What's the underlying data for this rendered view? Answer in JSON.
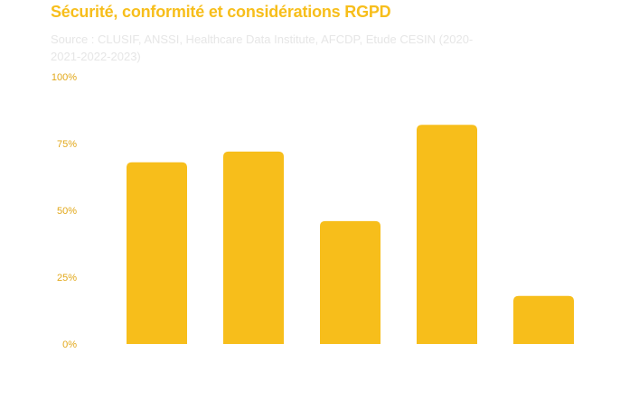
{
  "chart_data": {
    "type": "bar",
    "title": "Sécurité, conformité et considérations RGPD",
    "subtitle": "Source : CLUSIF, ANSSI, Healthcare Data Institute, AFCDP, Etude CESIN (2020-2021-2022-2023)",
    "categories": [
      "",
      "",
      "",
      "",
      ""
    ],
    "values": [
      68,
      72,
      46,
      82,
      18
    ],
    "xlabel": "",
    "ylabel": "",
    "ylim": [
      0,
      100
    ],
    "y_ticks": [
      "0%",
      "25%",
      "50%",
      "75%",
      "100%"
    ],
    "y_tick_values": [
      0,
      25,
      50,
      75,
      100
    ],
    "grid": false,
    "legend": "none"
  },
  "colors": {
    "bar": "#F7BE1B",
    "title": "#F7BE1B",
    "source": "#E6E6E6",
    "tick": "#E2A81A"
  }
}
